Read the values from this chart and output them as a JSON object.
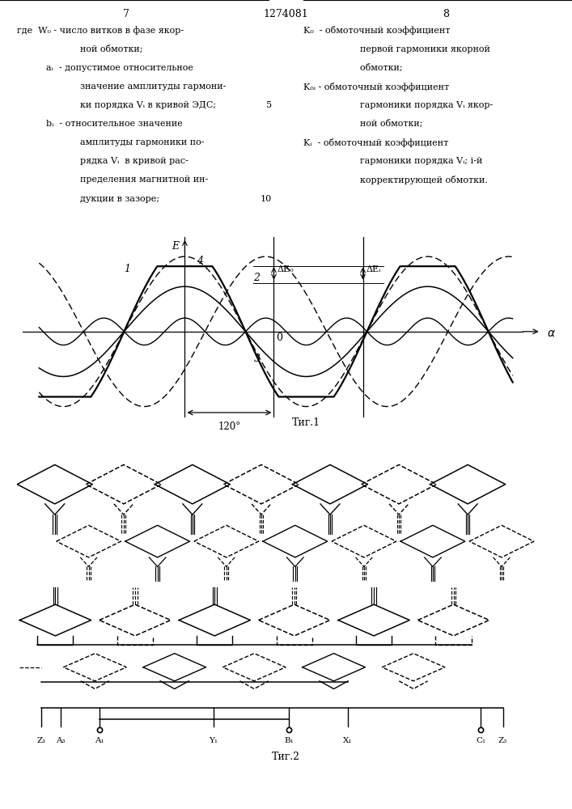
{
  "background_color": "#ffffff",
  "page_left": "7",
  "page_center": "1274081",
  "page_right": "8",
  "fig1_label": "Τиг.1",
  "fig2_label": "Τиг.2",
  "left_col": [
    [
      0.03,
      "где  W₀ - число витков в фазе якор-"
    ],
    [
      0.1,
      "       ной обмотки;"
    ],
    [
      0.1,
      "aᵢ  - допустимое относительное"
    ],
    [
      0.1,
      "       значение амплитуды гармони-"
    ],
    [
      0.1,
      "       ки порядка Vᵢ в кривой ЭДС;  5"
    ],
    [
      0.1,
      "bᵢ  - относительное значение"
    ],
    [
      0.1,
      "       амплитуды гармоники по-"
    ],
    [
      0.1,
      "       рядка Vᵢ  в кривой рас-"
    ],
    [
      0.1,
      "       пределения магнитной ин-"
    ],
    [
      0.1,
      "       дукции в зазоре;"
    ]
  ],
  "right_col": [
    [
      0.53,
      "K₀  - обмоточный коэффициент"
    ],
    [
      0.6,
      "      первой гармоники якорной"
    ],
    [
      0.6,
      "      обмотки;"
    ],
    [
      0.53,
      "K₀ᵢ - обмоточный коэффициент"
    ],
    [
      0.6,
      "      гармоники порядка Vᵢ якор-"
    ],
    [
      0.6,
      "      ной обмотки;"
    ],
    [
      0.53,
      "Kᵢ  - обмоточный коэффициент"
    ],
    [
      0.6,
      "      гармоники порядка Vᵢ; i-й"
    ],
    [
      0.6,
      "      корректирующей обмотки."
    ]
  ]
}
